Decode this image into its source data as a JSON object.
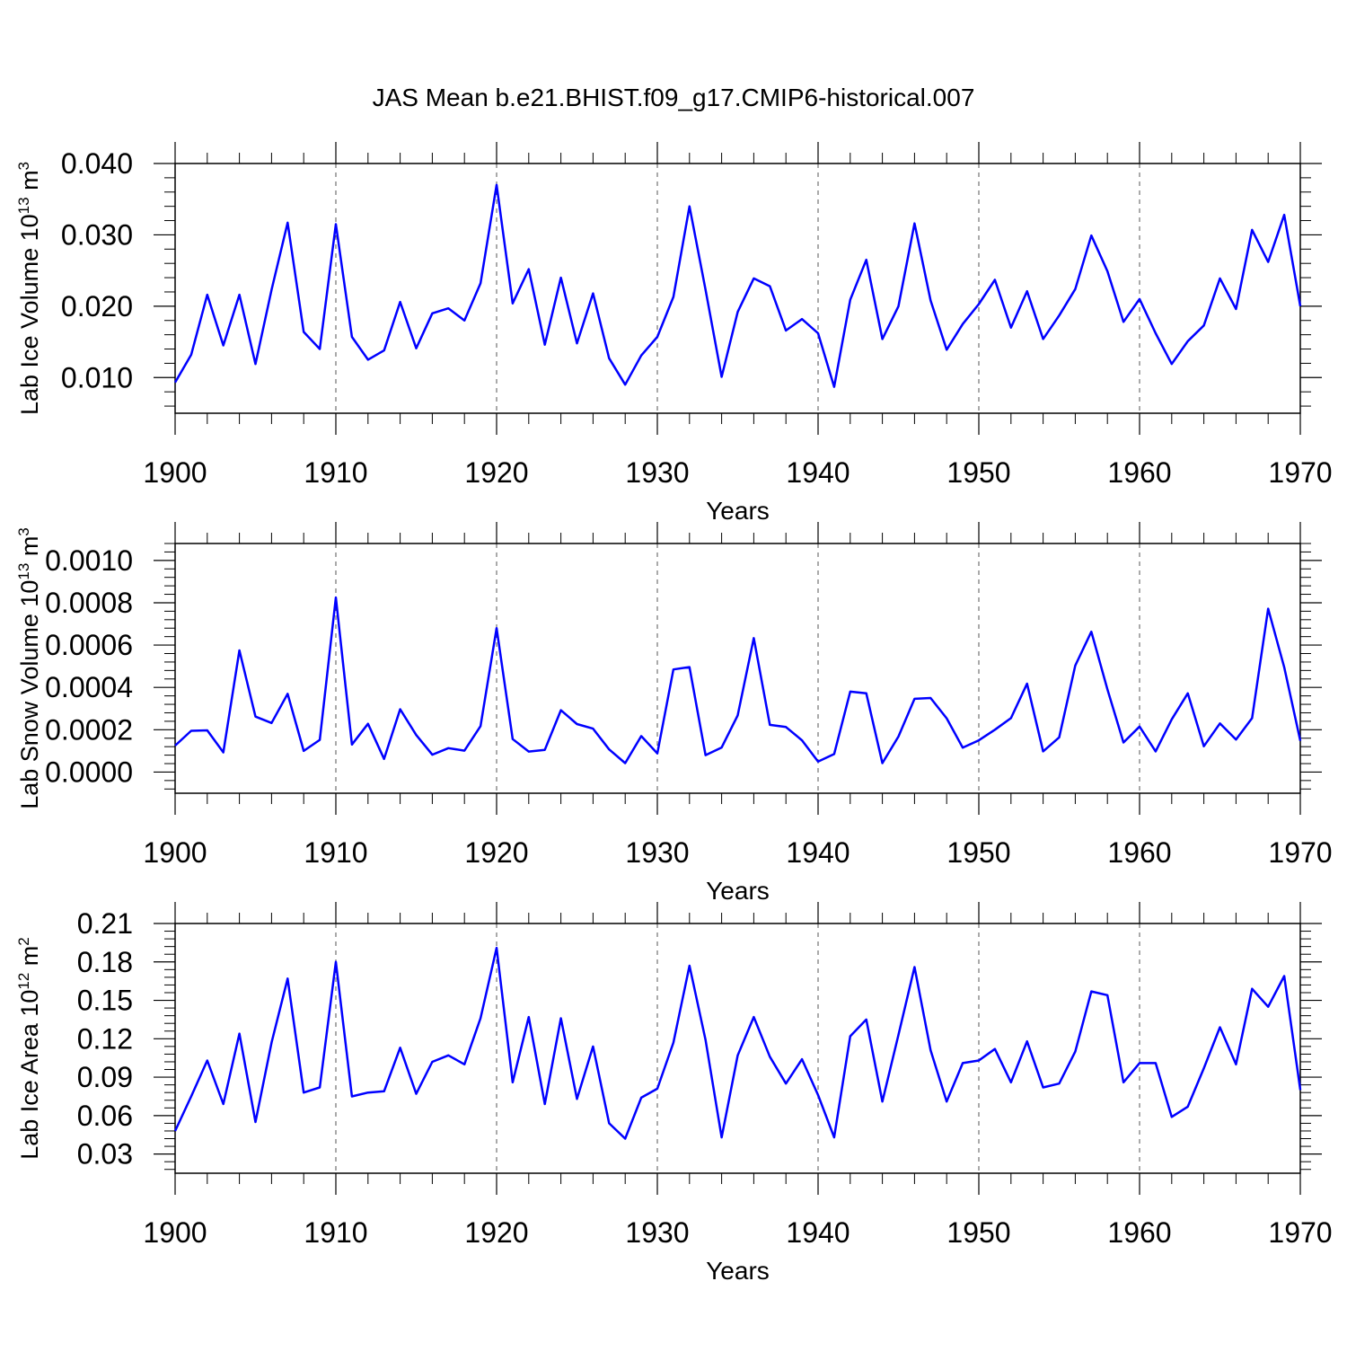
{
  "title": "JAS Mean b.e21.BHIST.f09_g17.CMIP6-historical.007",
  "line_color": "#0000ff",
  "chart_data": [
    {
      "type": "line",
      "name": "ice-volume",
      "ylabel_main": "Lab Ice Volume 10",
      "ylabel_sup": "13",
      "ylabel_unit": " m",
      "ylabel_unit_sup": "3",
      "xlabel": "Years",
      "xlim": [
        1900,
        1970
      ],
      "ylim": [
        0.005,
        0.04
      ],
      "xticks": [
        "1900",
        "1910",
        "1920",
        "1930",
        "1940",
        "1950",
        "1960",
        "1970"
      ],
      "yticks": [
        {
          "v": 0.01,
          "label": "0.010"
        },
        {
          "v": 0.02,
          "label": "0.020"
        },
        {
          "v": 0.03,
          "label": "0.030"
        },
        {
          "v": 0.04,
          "label": "0.040"
        }
      ],
      "x_start": 1900,
      "values": [
        0.0093,
        0.0132,
        0.0216,
        0.0145,
        0.0216,
        0.0119,
        0.0223,
        0.0317,
        0.0164,
        0.014,
        0.0315,
        0.0157,
        0.0125,
        0.0138,
        0.0206,
        0.0141,
        0.019,
        0.0197,
        0.018,
        0.0232,
        0.037,
        0.0204,
        0.0252,
        0.0146,
        0.024,
        0.0148,
        0.0218,
        0.0127,
        0.009,
        0.0131,
        0.0157,
        0.0213,
        0.034,
        0.0223,
        0.0101,
        0.0192,
        0.0239,
        0.0228,
        0.0166,
        0.0182,
        0.0162,
        0.0087,
        0.0209,
        0.0265,
        0.0154,
        0.02,
        0.0316,
        0.0208,
        0.0139,
        0.0175,
        0.0203,
        0.0237,
        0.017,
        0.0221,
        0.0154,
        0.0187,
        0.0224,
        0.0299,
        0.0249,
        0.0178,
        0.021,
        0.0162,
        0.0119,
        0.0151,
        0.0173,
        0.0239,
        0.0196,
        0.0307,
        0.0262,
        0.0328,
        0.02
      ]
    },
    {
      "type": "line",
      "name": "snow-volume",
      "ylabel_main": "Lab Snow Volume 10",
      "ylabel_sup": "13",
      "ylabel_unit": " m",
      "ylabel_unit_sup": "3",
      "xlabel": "Years",
      "xlim": [
        1900,
        1970
      ],
      "ylim": [
        -0.0001,
        0.00108
      ],
      "xticks": [
        "1900",
        "1910",
        "1920",
        "1930",
        "1940",
        "1950",
        "1960",
        "1970"
      ],
      "yticks": [
        {
          "v": 0.0,
          "label": "0.0000"
        },
        {
          "v": 0.0002,
          "label": "0.0002"
        },
        {
          "v": 0.0004,
          "label": "0.0004"
        },
        {
          "v": 0.0006,
          "label": "0.0006"
        },
        {
          "v": 0.0008,
          "label": "0.0008"
        },
        {
          "v": 0.001,
          "label": "0.0010"
        }
      ],
      "x_start": 1900,
      "values": [
        0.000125,
        0.000195,
        0.000197,
        9.3e-05,
        0.000575,
        0.000262,
        0.000232,
        0.00037,
        0.0001,
        0.000152,
        0.000825,
        0.00013,
        0.000228,
        6.2e-05,
        0.000297,
        0.000175,
        8.2e-05,
        0.000113,
        0.000101,
        0.000217,
        0.00068,
        0.000156,
        9.7e-05,
        0.000105,
        0.000292,
        0.000227,
        0.000205,
        0.000107,
        4.2e-05,
        0.00017,
        8.8e-05,
        0.000485,
        0.000496,
        8e-05,
        0.000116,
        0.000268,
        0.000633,
        0.000223,
        0.000213,
        0.00015,
        5e-05,
        8.5e-05,
        0.00038,
        0.000372,
        4.2e-05,
        0.000168,
        0.000346,
        0.00035,
        0.000254,
        0.000115,
        0.00015,
        0.0002,
        0.000255,
        0.000418,
        9.8e-05,
        0.000164,
        0.000503,
        0.000663,
        0.000391,
        0.00014,
        0.000215,
        9.8e-05,
        0.000249,
        0.000372,
        0.000122,
        0.00023,
        0.000154,
        0.000255,
        0.000772,
        0.000495,
        0.000148
      ]
    },
    {
      "type": "line",
      "name": "ice-area",
      "ylabel_main": "Lab Ice Area 10",
      "ylabel_sup": "12",
      "ylabel_unit": " m",
      "ylabel_unit_sup": "2",
      "xlabel": "Years",
      "xlim": [
        1900,
        1970
      ],
      "ylim": [
        0.015,
        0.21
      ],
      "xticks": [
        "1900",
        "1910",
        "1920",
        "1930",
        "1940",
        "1950",
        "1960",
        "1970"
      ],
      "yticks": [
        {
          "v": 0.03,
          "label": "0.03"
        },
        {
          "v": 0.06,
          "label": "0.06"
        },
        {
          "v": 0.09,
          "label": "0.09"
        },
        {
          "v": 0.12,
          "label": "0.12"
        },
        {
          "v": 0.15,
          "label": "0.15"
        },
        {
          "v": 0.18,
          "label": "0.18"
        },
        {
          "v": 0.21,
          "label": "0.21"
        }
      ],
      "x_start": 1900,
      "values": [
        0.048,
        0.075,
        0.103,
        0.069,
        0.124,
        0.055,
        0.117,
        0.167,
        0.078,
        0.082,
        0.18,
        0.075,
        0.078,
        0.079,
        0.113,
        0.077,
        0.102,
        0.107,
        0.1,
        0.136,
        0.191,
        0.086,
        0.137,
        0.069,
        0.136,
        0.073,
        0.114,
        0.054,
        0.042,
        0.074,
        0.081,
        0.117,
        0.177,
        0.119,
        0.043,
        0.107,
        0.137,
        0.106,
        0.085,
        0.104,
        0.076,
        0.043,
        0.122,
        0.135,
        0.071,
        0.123,
        0.176,
        0.111,
        0.071,
        0.101,
        0.103,
        0.112,
        0.086,
        0.118,
        0.082,
        0.085,
        0.11,
        0.157,
        0.154,
        0.086,
        0.101,
        0.101,
        0.059,
        0.067,
        0.097,
        0.129,
        0.1,
        0.159,
        0.145,
        0.169,
        0.08
      ]
    }
  ]
}
